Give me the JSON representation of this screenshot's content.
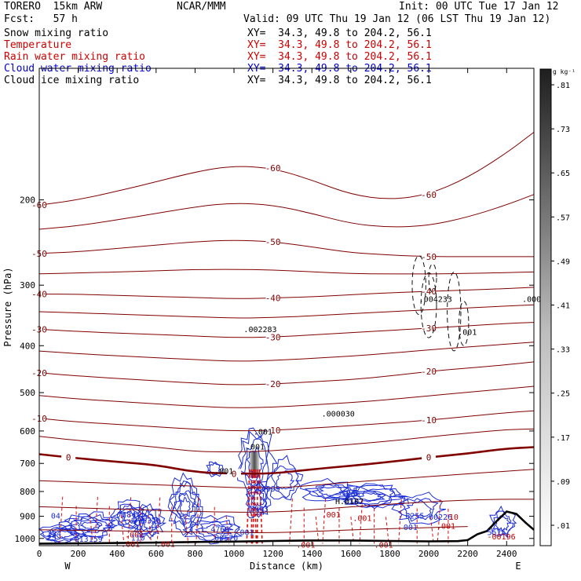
{
  "header": {
    "model": "TORERO  15km ARW",
    "org": "NCAR/MMM",
    "init": "Init: 00 UTC Tue 17 Jan 12",
    "fcst": "Fcst:   57 h",
    "valid": "Valid: 09 UTC Thu 19 Jan 12 (06 LST Thu 19 Jan 12)"
  },
  "fields": [
    {
      "label": "Snow mixing ratio",
      "xy": "XY=  34.3, 49.8 to 204.2, 56.1",
      "color": "#000000"
    },
    {
      "label": "Temperature",
      "xy": "XY=  34.3, 49.8 to 204.2, 56.1",
      "color": "#cc0000"
    },
    {
      "label": "Rain water mixing ratio",
      "xy": "XY=  34.3, 49.8 to 204.2, 56.1",
      "color": "#cc0000"
    },
    {
      "label": "Cloud water mixing ratio",
      "xy": "XY=  34.3, 49.8 to 204.2, 56.1",
      "color": "#0000cc"
    },
    {
      "label": "Cloud ice mixing ratio",
      "xy": "XY=  34.3, 49.8 to 204.2, 56.1",
      "color": "#000000"
    }
  ],
  "chart_data": {
    "type": "cross-section contour",
    "xlabel": "Distance (km)",
    "ylabel": "Pressure (hPa)",
    "x_ticks": [
      0,
      200,
      400,
      600,
      800,
      1000,
      1200,
      1400,
      1600,
      1800,
      2000,
      2200,
      2400
    ],
    "y_ticks": [
      200,
      300,
      400,
      500,
      600,
      700,
      800,
      900,
      1000
    ],
    "xlim": [
      0,
      2540
    ],
    "ylim": [
      1035,
      107
    ],
    "y_scale": "log",
    "x_end_labels": {
      "left": "W",
      "right": "E"
    },
    "colorbar": {
      "unit": "g kg⁻¹",
      "ticks": [
        ".01",
        ".09",
        ".17",
        ".25",
        ".33",
        ".41",
        ".49",
        ".57",
        ".65",
        ".73",
        ".81"
      ]
    },
    "temperature_contours": [
      {
        "label": "0",
        "points": [
          [
            0,
            670
          ],
          [
            150,
            680
          ],
          [
            400,
            695
          ],
          [
            600,
            705
          ],
          [
            800,
            730
          ],
          [
            1000,
            735
          ],
          [
            1200,
            735
          ],
          [
            1400,
            720
          ],
          [
            1600,
            708
          ],
          [
            1800,
            695
          ],
          [
            2000,
            680
          ],
          [
            2200,
            668
          ],
          [
            2400,
            652
          ],
          [
            2540,
            648
          ]
        ]
      },
      {
        "label": "-10",
        "points": [
          [
            0,
            565
          ],
          [
            200,
            575
          ],
          [
            500,
            585
          ],
          [
            800,
            595
          ],
          [
            1000,
            600
          ],
          [
            1200,
            598
          ],
          [
            1400,
            592
          ],
          [
            1600,
            585
          ],
          [
            1800,
            578
          ],
          [
            2000,
            570
          ],
          [
            2200,
            560
          ],
          [
            2400,
            550
          ],
          [
            2540,
            545
          ]
        ]
      },
      {
        "label": "-20",
        "points": [
          [
            0,
            455
          ],
          [
            200,
            462
          ],
          [
            500,
            470
          ],
          [
            800,
            478
          ],
          [
            1000,
            482
          ],
          [
            1200,
            480
          ],
          [
            1400,
            475
          ],
          [
            1600,
            470
          ],
          [
            1800,
            462
          ],
          [
            2000,
            452
          ],
          [
            2200,
            445
          ],
          [
            2400,
            438
          ],
          [
            2540,
            432
          ]
        ]
      },
      {
        "label": "-30",
        "points": [
          [
            0,
            370
          ],
          [
            200,
            374
          ],
          [
            500,
            378
          ],
          [
            800,
            382
          ],
          [
            1000,
            385
          ],
          [
            1200,
            384
          ],
          [
            1400,
            380
          ],
          [
            1600,
            376
          ],
          [
            1800,
            372
          ],
          [
            2000,
            368
          ],
          [
            2200,
            364
          ],
          [
            2400,
            360
          ],
          [
            2540,
            358
          ]
        ]
      },
      {
        "label": "-40",
        "points": [
          [
            0,
            313
          ],
          [
            200,
            313
          ],
          [
            500,
            316
          ],
          [
            800,
            318
          ],
          [
            1000,
            320
          ],
          [
            1200,
            319
          ],
          [
            1400,
            317
          ],
          [
            1600,
            314
          ],
          [
            1800,
            311
          ],
          [
            2000,
            309
          ],
          [
            2200,
            307
          ],
          [
            2400,
            305
          ],
          [
            2540,
            303
          ]
        ]
      },
      {
        "label": "-50",
        "points": [
          [
            0,
            258
          ],
          [
            200,
            256
          ],
          [
            500,
            250
          ],
          [
            800,
            244
          ],
          [
            1000,
            242
          ],
          [
            1200,
            244
          ],
          [
            1400,
            250
          ],
          [
            1600,
            257
          ],
          [
            1800,
            260
          ],
          [
            2000,
            262
          ],
          [
            2200,
            262
          ],
          [
            2400,
            262
          ],
          [
            2540,
            262
          ]
        ]
      },
      {
        "label": "-60",
        "points": [
          [
            0,
            205
          ],
          [
            200,
            200
          ],
          [
            500,
            188
          ],
          [
            800,
            175
          ],
          [
            1000,
            170
          ],
          [
            1200,
            172
          ],
          [
            1400,
            182
          ],
          [
            1600,
            195
          ],
          [
            1800,
            200
          ],
          [
            2000,
            195
          ],
          [
            2200,
            180
          ],
          [
            2400,
            160
          ],
          [
            2540,
            145
          ]
        ]
      }
    ],
    "extrema_labels": [
      {
        "x": 1050,
        "p": 375,
        "text": ".002283"
      },
      {
        "x": 1950,
        "p": 325,
        "text": ".004233"
      },
      {
        "x": 2480,
        "p": 325,
        "text": ".000"
      },
      {
        "x": 2150,
        "p": 380,
        "text": ".001"
      },
      {
        "x": 1450,
        "p": 560,
        "text": ".000030"
      },
      {
        "x": 1100,
        "p": 610,
        "text": ".001"
      },
      {
        "x": 1060,
        "p": 655,
        "text": ".001"
      },
      {
        "x": 900,
        "p": 735,
        "text": ".001"
      },
      {
        "x": 1140,
        "p": 800,
        "text": "4999"
      },
      {
        "x": 1080,
        "p": 880,
        "text": "3943"
      },
      {
        "x": 1550,
        "p": 820,
        "text": "5866"
      },
      {
        "x": 1520,
        "p": 850,
        "text": "H.0107"
      },
      {
        "x": 1450,
        "p": 905,
        "text": ".001"
      },
      {
        "x": 1610,
        "p": 920,
        "text": ".001"
      },
      {
        "x": 1880,
        "p": 910,
        "text": "6255"
      },
      {
        "x": 2000,
        "p": 915,
        "text": "00226"
      },
      {
        "x": 2080,
        "p": 915,
        "text": ".10"
      },
      {
        "x": 2040,
        "p": 955,
        "text": ".001"
      },
      {
        "x": 2300,
        "p": 985,
        "text": "5575"
      },
      {
        "x": 2300,
        "p": 1005,
        "text": "-00196"
      },
      {
        "x": 400,
        "p": 905,
        "text": "7584"
      },
      {
        "x": 480,
        "p": 930,
        "text": "016316"
      },
      {
        "x": 60,
        "p": 910,
        "text": "04"
      },
      {
        "x": 40,
        "p": 990,
        "text": "724"
      },
      {
        "x": 40,
        "p": 1010,
        "text": "25"
      },
      {
        "x": 180,
        "p": 1015,
        "text": "013159"
      },
      {
        "x": 440,
        "p": 995,
        "text": ".001"
      },
      {
        "x": 470,
        "p": 1010,
        "text": "110"
      },
      {
        "x": 880,
        "p": 970,
        "text": "4766"
      },
      {
        "x": 900,
        "p": 1010,
        "text": "00570"
      },
      {
        "x": 1030,
        "p": 985,
        "text": "001"
      },
      {
        "x": 420,
        "p": 1040,
        "text": ".001"
      },
      {
        "x": 600,
        "p": 1040,
        "text": ".001"
      },
      {
        "x": 1320,
        "p": 1045,
        "text": ".001"
      },
      {
        "x": 1720,
        "p": 1045,
        "text": ".001"
      },
      {
        "x": 1870,
        "p": 960,
        "text": "001"
      }
    ],
    "terrain": [
      [
        0,
        1025
      ],
      [
        200,
        1024
      ],
      [
        400,
        1022
      ],
      [
        600,
        1020
      ],
      [
        800,
        1017
      ],
      [
        1000,
        1015
      ],
      [
        1200,
        1012
      ],
      [
        1400,
        1010
      ],
      [
        1600,
        1010
      ],
      [
        1800,
        1012
      ],
      [
        2000,
        1014
      ],
      [
        2150,
        1013
      ],
      [
        2200,
        1008
      ],
      [
        2250,
        980
      ],
      [
        2300,
        965
      ],
      [
        2350,
        920
      ],
      [
        2400,
        880
      ],
      [
        2450,
        890
      ],
      [
        2500,
        930
      ],
      [
        2540,
        960
      ]
    ]
  }
}
